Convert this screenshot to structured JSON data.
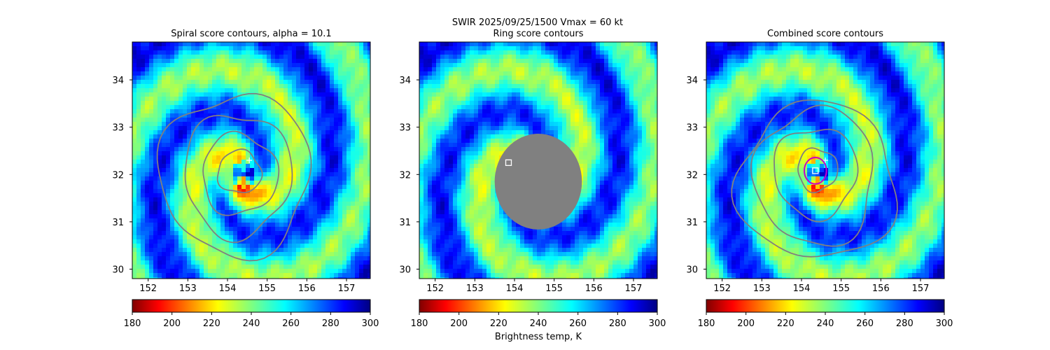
{
  "suptitle_line": "SWIR  2025/09/25/1500    Vmax = 60 kt",
  "colorbar_label": "Brightness temp, K",
  "colors": {
    "contour": "#808080",
    "ring_mask": "#808080",
    "marker": "#ffffff",
    "circle": "#c800c8"
  },
  "chart_data": [
    {
      "type": "heatmap",
      "title": "Spiral score contours, alpha = 10.1",
      "xlim": [
        151.6,
        157.6
      ],
      "ylim": [
        29.8,
        34.8
      ],
      "xticks": [
        "152",
        "153",
        "154",
        "155",
        "156",
        "157"
      ],
      "yticks": [
        "30",
        "31",
        "32",
        "33",
        "34"
      ],
      "colorbar": {
        "range": [
          180,
          300
        ],
        "ticks": [
          "180",
          "200",
          "220",
          "240",
          "260",
          "280",
          "300"
        ],
        "colormap": "jet_r"
      },
      "markers": [
        {
          "kind": "plus",
          "lon": 154.55,
          "lat": 32.3
        }
      ],
      "contours": [
        {
          "level": 1,
          "center": [
            154.3,
            32.05
          ],
          "rx": 0.55,
          "ry": 0.45
        },
        {
          "level": 2,
          "center": [
            154.3,
            32.0
          ],
          "rx": 0.95,
          "ry": 0.85
        },
        {
          "level": 3,
          "center": [
            154.25,
            32.0
          ],
          "rx": 1.35,
          "ry": 1.3
        },
        {
          "level": 4,
          "center": [
            154.2,
            32.0
          ],
          "rx": 1.9,
          "ry": 1.7
        }
      ]
    },
    {
      "type": "heatmap",
      "title": "Ring score contours",
      "xlim": [
        151.6,
        157.6
      ],
      "ylim": [
        29.8,
        34.8
      ],
      "xticks": [
        "152",
        "153",
        "154",
        "155",
        "156",
        "157"
      ],
      "yticks": [
        "30",
        "31",
        "32",
        "33",
        "34"
      ],
      "colorbar": {
        "range": [
          180,
          300
        ],
        "ticks": [
          "180",
          "200",
          "220",
          "240",
          "260",
          "280",
          "300"
        ],
        "colormap": "jet_r"
      },
      "markers": [
        {
          "kind": "square",
          "lon": 153.85,
          "lat": 32.25
        }
      ],
      "ring_mask": {
        "center": [
          154.6,
          31.85
        ],
        "radius_deg": 1.1
      }
    },
    {
      "type": "heatmap",
      "title": "Combined score contours",
      "xlim": [
        151.6,
        157.6
      ],
      "ylim": [
        29.8,
        34.8
      ],
      "xticks": [
        "152",
        "153",
        "154",
        "155",
        "156",
        "157"
      ],
      "yticks": [
        "30",
        "31",
        "32",
        "33",
        "34"
      ],
      "colorbar": {
        "range": [
          180,
          300
        ],
        "ticks": [
          "180",
          "200",
          "220",
          "240",
          "260",
          "280",
          "300"
        ],
        "colormap": "jet_r"
      },
      "markers": [
        {
          "kind": "plus",
          "lon": 154.6,
          "lat": 32.3
        },
        {
          "kind": "square",
          "lon": 154.35,
          "lat": 32.08
        },
        {
          "kind": "circle",
          "lon": 154.35,
          "lat": 32.08,
          "radius_deg": 0.28
        }
      ],
      "contours": [
        {
          "level": 1,
          "center": [
            154.4,
            32.1
          ],
          "rx": 0.5,
          "ry": 0.45
        },
        {
          "level": 2,
          "center": [
            154.35,
            32.05
          ],
          "rx": 1.05,
          "ry": 0.95
        },
        {
          "level": 3,
          "center": [
            154.35,
            31.95
          ],
          "rx": 1.5,
          "ry": 1.45
        },
        {
          "level": 4,
          "center": [
            154.4,
            31.85
          ],
          "rx": 2.0,
          "ry": 1.65
        }
      ]
    }
  ]
}
